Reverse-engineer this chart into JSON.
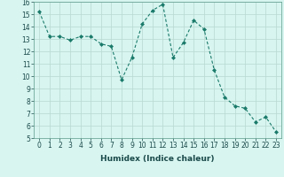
{
  "x": [
    0,
    1,
    2,
    3,
    4,
    5,
    6,
    7,
    8,
    9,
    10,
    11,
    12,
    13,
    14,
    15,
    16,
    17,
    18,
    19,
    20,
    21,
    22,
    23
  ],
  "y": [
    15.2,
    13.2,
    13.2,
    12.9,
    13.2,
    13.2,
    12.6,
    12.4,
    9.7,
    11.5,
    14.2,
    15.3,
    15.8,
    11.5,
    12.7,
    14.5,
    13.8,
    10.5,
    8.3,
    7.6,
    7.4,
    6.3,
    6.7,
    5.5
  ],
  "line_color": "#1a7a6a",
  "marker": "D",
  "marker_size": 2,
  "bg_color": "#d8f5f0",
  "grid_color": "#b8d8d0",
  "xlabel": "Humidex (Indice chaleur)",
  "ylim": [
    5,
    16
  ],
  "xlim": [
    -0.5,
    23.5
  ],
  "yticks": [
    5,
    6,
    7,
    8,
    9,
    10,
    11,
    12,
    13,
    14,
    15,
    16
  ],
  "xticks": [
    0,
    1,
    2,
    3,
    4,
    5,
    6,
    7,
    8,
    9,
    10,
    11,
    12,
    13,
    14,
    15,
    16,
    17,
    18,
    19,
    20,
    21,
    22,
    23
  ],
  "tick_fontsize": 5.5,
  "xlabel_fontsize": 6.5
}
